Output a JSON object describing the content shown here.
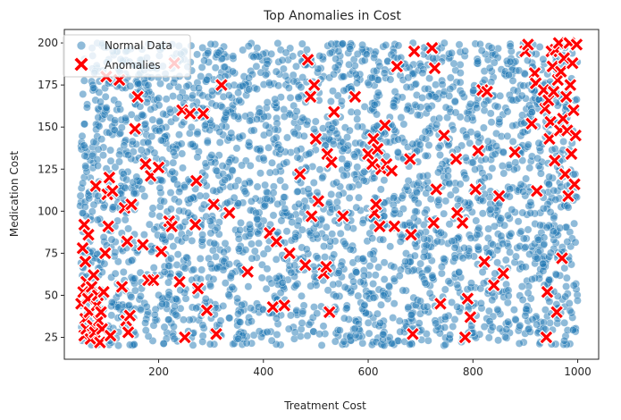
{
  "chart_data": {
    "type": "scatter",
    "title": "Top Anomalies in Cost",
    "xlabel": "Treatment Cost",
    "ylabel": "Medication Cost",
    "xlim": [
      20,
      1040
    ],
    "ylim": [
      12,
      208
    ],
    "xticks": [
      200,
      400,
      600,
      800,
      1000
    ],
    "yticks": [
      25,
      50,
      75,
      100,
      125,
      150,
      175,
      200
    ],
    "grid": false,
    "legend_position": "top-left",
    "normal_point_count": 3000,
    "normal_x_range": [
      50,
      1000
    ],
    "normal_y_range": [
      20,
      200
    ],
    "series": [
      {
        "name": "Normal Data",
        "marker": "circle",
        "color": "#1f77b4",
        "opacity": 0.5
      },
      {
        "name": "Anomalies",
        "marker": "x",
        "color": "#ff0000",
        "points": [
          [
            52,
            45
          ],
          [
            55,
            78
          ],
          [
            56,
            52
          ],
          [
            58,
            92
          ],
          [
            58,
            26
          ],
          [
            60,
            36
          ],
          [
            60,
            70
          ],
          [
            62,
            58
          ],
          [
            62,
            30
          ],
          [
            65,
            48
          ],
          [
            66,
            86
          ],
          [
            68,
            40
          ],
          [
            70,
            24
          ],
          [
            72,
            55
          ],
          [
            74,
            32
          ],
          [
            76,
            62
          ],
          [
            78,
            28
          ],
          [
            80,
            115
          ],
          [
            82,
            44
          ],
          [
            84,
            50
          ],
          [
            86,
            35
          ],
          [
            88,
            22
          ],
          [
            90,
            40
          ],
          [
            92,
            30
          ],
          [
            95,
            52
          ],
          [
            98,
            75
          ],
          [
            100,
            180
          ],
          [
            102,
            110
          ],
          [
            104,
            91
          ],
          [
            106,
            120
          ],
          [
            108,
            26
          ],
          [
            112,
            112
          ],
          [
            125,
            178
          ],
          [
            130,
            55
          ],
          [
            135,
            102
          ],
          [
            138,
            35
          ],
          [
            140,
            82
          ],
          [
            142,
            28
          ],
          [
            145,
            38
          ],
          [
            148,
            104
          ],
          [
            155,
            149
          ],
          [
            160,
            168
          ],
          [
            170,
            80
          ],
          [
            175,
            128
          ],
          [
            180,
            59
          ],
          [
            185,
            121
          ],
          [
            190,
            59
          ],
          [
            200,
            126
          ],
          [
            205,
            76
          ],
          [
            220,
            94
          ],
          [
            225,
            91
          ],
          [
            230,
            188
          ],
          [
            240,
            58
          ],
          [
            245,
            160
          ],
          [
            250,
            25
          ],
          [
            260,
            158
          ],
          [
            270,
            92
          ],
          [
            272,
            118
          ],
          [
            275,
            54
          ],
          [
            285,
            158
          ],
          [
            292,
            41
          ],
          [
            305,
            104
          ],
          [
            310,
            27
          ],
          [
            320,
            175
          ],
          [
            335,
            99
          ],
          [
            370,
            64
          ],
          [
            412,
            87
          ],
          [
            418,
            43
          ],
          [
            425,
            82
          ],
          [
            440,
            44
          ],
          [
            450,
            75
          ],
          [
            470,
            122
          ],
          [
            480,
            68
          ],
          [
            485,
            190
          ],
          [
            490,
            168
          ],
          [
            492,
            97
          ],
          [
            497,
            175
          ],
          [
            500,
            143
          ],
          [
            505,
            106
          ],
          [
            515,
            63
          ],
          [
            520,
            67
          ],
          [
            522,
            134
          ],
          [
            526,
            40
          ],
          [
            530,
            129
          ],
          [
            535,
            159
          ],
          [
            552,
            97
          ],
          [
            575,
            168
          ],
          [
            600,
            134
          ],
          [
            608,
            128
          ],
          [
            610,
            143
          ],
          [
            612,
            99
          ],
          [
            615,
            104
          ],
          [
            618,
            137
          ],
          [
            622,
            91
          ],
          [
            625,
            125
          ],
          [
            632,
            151
          ],
          [
            635,
            128
          ],
          [
            645,
            124
          ],
          [
            650,
            91
          ],
          [
            655,
            186
          ],
          [
            680,
            131
          ],
          [
            682,
            86
          ],
          [
            685,
            27
          ],
          [
            688,
            195
          ],
          [
            722,
            197
          ],
          [
            725,
            93
          ],
          [
            727,
            185
          ],
          [
            730,
            113
          ],
          [
            738,
            45
          ],
          [
            745,
            145
          ],
          [
            768,
            131
          ],
          [
            770,
            99
          ],
          [
            780,
            93
          ],
          [
            785,
            25
          ],
          [
            790,
            48
          ],
          [
            795,
            37
          ],
          [
            805,
            113
          ],
          [
            810,
            136
          ],
          [
            818,
            172
          ],
          [
            822,
            70
          ],
          [
            827,
            171
          ],
          [
            840,
            56
          ],
          [
            850,
            109
          ],
          [
            858,
            63
          ],
          [
            880,
            135
          ],
          [
            900,
            195
          ],
          [
            905,
            199
          ],
          [
            912,
            152
          ],
          [
            918,
            182
          ],
          [
            920,
            176
          ],
          [
            922,
            112
          ],
          [
            935,
            172
          ],
          [
            938,
            161
          ],
          [
            940,
            25
          ],
          [
            942,
            52
          ],
          [
            944,
            166
          ],
          [
            946,
            143
          ],
          [
            948,
            153
          ],
          [
            950,
            195
          ],
          [
            952,
            186
          ],
          [
            954,
            171
          ],
          [
            956,
            130
          ],
          [
            958,
            196
          ],
          [
            960,
            40
          ],
          [
            962,
            178
          ],
          [
            964,
            200
          ],
          [
            966,
            148
          ],
          [
            968,
            183
          ],
          [
            970,
            72
          ],
          [
            972,
            155
          ],
          [
            974,
            191
          ],
          [
            976,
            122
          ],
          [
            978,
            168
          ],
          [
            980,
            148
          ],
          [
            982,
            109
          ],
          [
            984,
            200
          ],
          [
            986,
            175
          ],
          [
            988,
            134
          ],
          [
            990,
            188
          ],
          [
            992,
            160
          ],
          [
            994,
            116
          ],
          [
            996,
            145
          ],
          [
            998,
            199
          ]
        ]
      }
    ]
  }
}
